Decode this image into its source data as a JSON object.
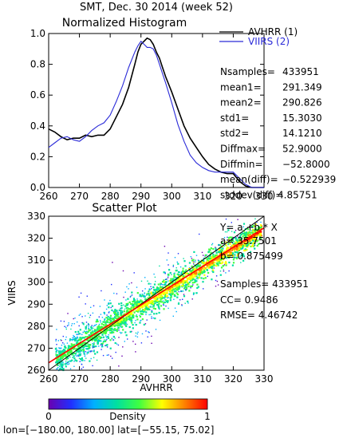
{
  "header": {
    "title": "SMT,  Dec. 30 2014 (week 52)"
  },
  "colors": {
    "series1": "#000000",
    "series2": "#2a2ad8",
    "fit_line": "#ff0000",
    "diagonal": "#000000",
    "colorbar": [
      "#6a00b0",
      "#2030ff",
      "#00b0ff",
      "#00e0a0",
      "#40ff40",
      "#ffff00",
      "#ff8000",
      "#ff0000"
    ]
  },
  "chart_data": [
    {
      "type": "line",
      "title": "Normalized Histogram",
      "xlim": [
        260,
        330
      ],
      "ylim": [
        0.0,
        1.0
      ],
      "x_ticks": [
        "260",
        "270",
        "280",
        "290",
        "300",
        "310",
        "320",
        "330"
      ],
      "y_ticks": [
        "0.0",
        "0.2",
        "0.4",
        "0.6",
        "0.8",
        "1.0"
      ],
      "x": [
        260,
        262,
        264,
        266,
        268,
        270,
        272,
        274,
        276,
        278,
        280,
        282,
        284,
        286,
        288,
        289,
        290,
        291,
        292,
        293,
        294,
        295,
        296,
        297,
        298,
        300,
        302,
        304,
        306,
        308,
        310,
        312,
        314,
        316,
        318,
        320,
        322,
        324,
        326,
        328,
        330
      ],
      "series": [
        {
          "name": "AVHRR (1)",
          "values": [
            0.38,
            0.36,
            0.33,
            0.31,
            0.32,
            0.32,
            0.34,
            0.33,
            0.34,
            0.34,
            0.38,
            0.46,
            0.54,
            0.65,
            0.8,
            0.88,
            0.93,
            0.95,
            0.97,
            0.96,
            0.93,
            0.88,
            0.84,
            0.78,
            0.72,
            0.62,
            0.51,
            0.4,
            0.32,
            0.26,
            0.2,
            0.15,
            0.12,
            0.1,
            0.09,
            0.09,
            0.04,
            0.01,
            0.0,
            0.0,
            0.0
          ]
        },
        {
          "name": "VIIRS (2)",
          "values": [
            0.26,
            0.29,
            0.32,
            0.33,
            0.31,
            0.3,
            0.33,
            0.37,
            0.4,
            0.42,
            0.47,
            0.56,
            0.66,
            0.78,
            0.88,
            0.92,
            0.95,
            0.93,
            0.91,
            0.91,
            0.9,
            0.86,
            0.8,
            0.74,
            0.68,
            0.55,
            0.41,
            0.3,
            0.21,
            0.16,
            0.13,
            0.11,
            0.1,
            0.1,
            0.1,
            0.1,
            0.06,
            0.02,
            0.0,
            0.0,
            0.0
          ]
        }
      ]
    },
    {
      "type": "scatter",
      "title": "Scatter Plot",
      "xlabel": "AVHRR",
      "ylabel": "VIIRS",
      "xlim": [
        260,
        330
      ],
      "ylim": [
        260,
        330
      ],
      "x_ticks": [
        "260",
        "270",
        "280",
        "290",
        "300",
        "310",
        "320",
        "330"
      ],
      "y_ticks": [
        "260",
        "270",
        "280",
        "290",
        "300",
        "310",
        "320",
        "330"
      ],
      "fit": {
        "intercept": 35.7501,
        "slope": 0.875499
      },
      "colorbar": {
        "label": "Density",
        "min_label": "0",
        "max_label": "1"
      }
    }
  ],
  "stats_top": {
    "lines": [
      [
        "Nsamples=",
        "433951"
      ],
      [
        "mean1=",
        "291.349"
      ],
      [
        "mean2=",
        "290.826"
      ],
      [
        "std1=",
        "15.3030"
      ],
      [
        "std2=",
        "14.1210"
      ],
      [
        "Diffmax=",
        "52.9000"
      ],
      [
        "Diffmin=",
        "−52.8000"
      ],
      [
        "mean(diff)=",
        "−0.522939"
      ],
      [
        "stddev(diff)=",
        "4.85751"
      ]
    ]
  },
  "stats_bottom": {
    "equation": "Y= a +b * X",
    "a": "a= 35.7501",
    "b": "b= 0.875499",
    "samples": "Samples= 433951",
    "cc": "CC=  0.9486",
    "rmse": "RMSE= 4.46742"
  },
  "footer": {
    "region": "lon=[−180.00, 180.00] lat=[−55.15, 75.02]"
  }
}
